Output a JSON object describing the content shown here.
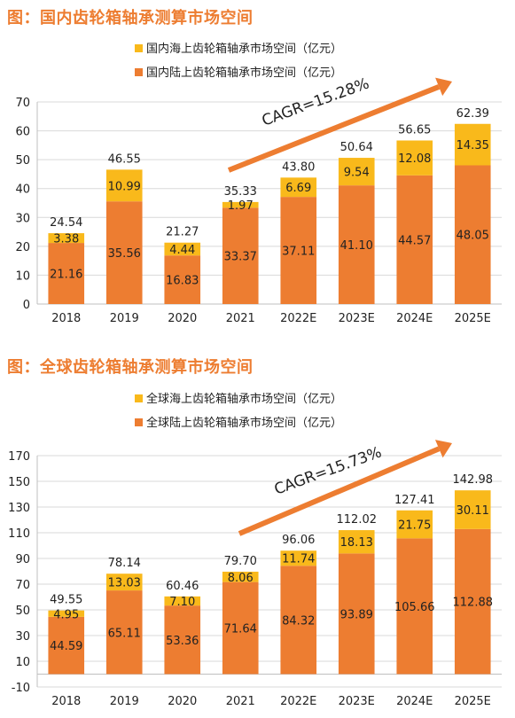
{
  "page": {
    "title_1": "图：国内齿轮箱轴承测算市场空间",
    "title_2": "图：全球齿轮箱轴承测算市场空间"
  },
  "colors": {
    "onshore": "#ED7D31",
    "offshore": "#F9B91B",
    "title": "#ED7D31",
    "arrow": "#ED7D31",
    "grid": "#D9D9D9",
    "axis": "#BFBFBF",
    "text": "#222222"
  },
  "chart_data": [
    {
      "type": "bar",
      "stacked": true,
      "categories": [
        "2018",
        "2019",
        "2020",
        "2021",
        "2022E",
        "2023E",
        "2024E",
        "2025E"
      ],
      "series": [
        {
          "name": "国内陆上齿轮箱轴承市场空间（亿元）",
          "values": [
            21.16,
            35.56,
            16.83,
            33.37,
            37.11,
            41.1,
            44.57,
            48.05
          ]
        },
        {
          "name": "国内海上齿轮箱轴承市场空间（亿元）",
          "values": [
            3.38,
            10.99,
            4.44,
            1.97,
            6.69,
            9.54,
            12.08,
            14.35
          ]
        }
      ],
      "totals": [
        24.54,
        46.55,
        21.27,
        35.33,
        43.8,
        50.64,
        56.65,
        62.39
      ],
      "labels": {
        "onshore": [
          "21.16",
          "35.56",
          "16.83",
          "33.37",
          "37.11",
          "41.10",
          "44.57",
          "48.05"
        ],
        "offshore": [
          "3.38",
          "10.99",
          "4.44",
          "1.97",
          "6.69",
          "9.54",
          "12.08",
          "14.35"
        ],
        "totals": [
          "24.54",
          "46.55",
          "21.27",
          "35.33",
          "43.80",
          "50.64",
          "56.65",
          "62.39"
        ]
      },
      "ylim": [
        0,
        70
      ],
      "yticks": [
        0,
        10,
        20,
        30,
        40,
        50,
        60,
        70
      ],
      "annotation": "CAGR=15.28%",
      "legend_position": "top"
    },
    {
      "type": "bar",
      "stacked": true,
      "categories": [
        "2018",
        "2019",
        "2020",
        "2021",
        "2022E",
        "2023E",
        "2024E",
        "2025E"
      ],
      "series": [
        {
          "name": "全球陆上齿轮箱轴承市场空间（亿元）",
          "values": [
            44.59,
            65.11,
            53.36,
            71.64,
            84.32,
            93.89,
            105.66,
            112.88
          ]
        },
        {
          "name": "全球海上齿轮箱轴承市场空间（亿元）",
          "values": [
            4.95,
            13.03,
            7.1,
            8.06,
            11.74,
            18.13,
            21.75,
            30.11
          ]
        }
      ],
      "totals": [
        49.55,
        78.14,
        60.46,
        79.7,
        96.06,
        112.02,
        127.41,
        142.98
      ],
      "labels": {
        "onshore": [
          "44.59",
          "65.11",
          "53.36",
          "71.64",
          "84.32",
          "93.89",
          "105.66",
          "112.88"
        ],
        "offshore": [
          "4.95",
          "13.03",
          "7.10",
          "8.06",
          "11.74",
          "18.13",
          "21.75",
          "30.11"
        ],
        "totals": [
          "49.55",
          "78.14",
          "60.46",
          "79.70",
          "96.06",
          "112.02",
          "127.41",
          "142.98"
        ]
      },
      "ylim": [
        -10,
        170
      ],
      "yticks": [
        -10,
        10,
        30,
        50,
        70,
        90,
        110,
        130,
        150,
        170
      ],
      "annotation": "CAGR=15.73%",
      "legend_position": "top"
    }
  ]
}
